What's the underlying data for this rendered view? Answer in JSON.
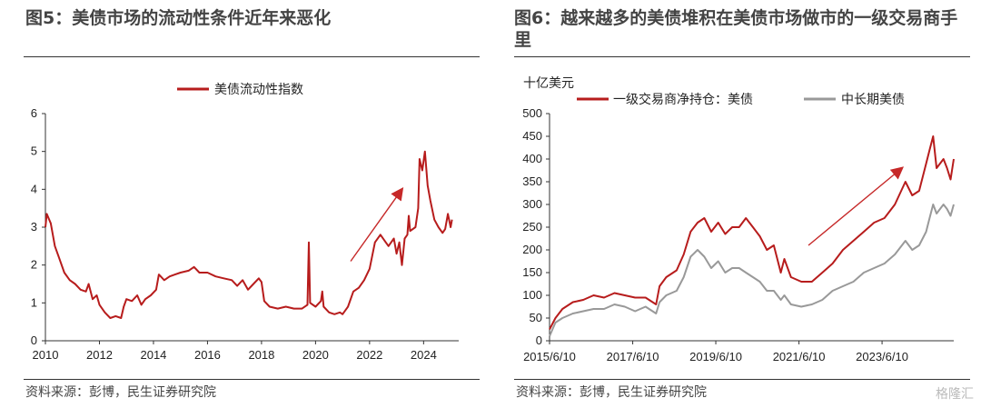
{
  "left": {
    "title": "图5：美债市场的流动性条件近年来恶化",
    "source": "资料来源：彭博，民生证券研究院",
    "chart_data": {
      "type": "line",
      "title": "",
      "xlabel": "",
      "ylabel": "",
      "xlim": [
        2010,
        2025.3
      ],
      "ylim": [
        0,
        6
      ],
      "x_ticks": [
        "2010",
        "2012",
        "2014",
        "2016",
        "2018",
        "2020",
        "2022",
        "2024"
      ],
      "y_ticks": [
        "0",
        "1",
        "2",
        "3",
        "4",
        "5",
        "6"
      ],
      "legend": "top-center",
      "series": [
        {
          "name": "美债流动性指数",
          "color": "#b71c1c",
          "points": [
            [
              2010.0,
              3.0
            ],
            [
              2010.05,
              3.35
            ],
            [
              2010.2,
              3.1
            ],
            [
              2010.35,
              2.5
            ],
            [
              2010.5,
              2.2
            ],
            [
              2010.7,
              1.8
            ],
            [
              2010.9,
              1.6
            ],
            [
              2011.1,
              1.5
            ],
            [
              2011.3,
              1.35
            ],
            [
              2011.5,
              1.3
            ],
            [
              2011.6,
              1.5
            ],
            [
              2011.75,
              1.1
            ],
            [
              2011.9,
              1.2
            ],
            [
              2012.0,
              0.95
            ],
            [
              2012.2,
              0.75
            ],
            [
              2012.4,
              0.6
            ],
            [
              2012.6,
              0.65
            ],
            [
              2012.8,
              0.6
            ],
            [
              2012.9,
              0.9
            ],
            [
              2013.0,
              1.1
            ],
            [
              2013.2,
              1.05
            ],
            [
              2013.4,
              1.2
            ],
            [
              2013.55,
              0.95
            ],
            [
              2013.7,
              1.1
            ],
            [
              2013.9,
              1.2
            ],
            [
              2014.1,
              1.35
            ],
            [
              2014.2,
              1.75
            ],
            [
              2014.4,
              1.6
            ],
            [
              2014.6,
              1.7
            ],
            [
              2014.8,
              1.75
            ],
            [
              2015.0,
              1.8
            ],
            [
              2015.3,
              1.85
            ],
            [
              2015.5,
              1.95
            ],
            [
              2015.7,
              1.8
            ],
            [
              2016.0,
              1.8
            ],
            [
              2016.3,
              1.7
            ],
            [
              2016.6,
              1.65
            ],
            [
              2016.9,
              1.6
            ],
            [
              2017.1,
              1.45
            ],
            [
              2017.3,
              1.6
            ],
            [
              2017.5,
              1.35
            ],
            [
              2017.7,
              1.5
            ],
            [
              2017.9,
              1.65
            ],
            [
              2018.0,
              1.55
            ],
            [
              2018.1,
              1.05
            ],
            [
              2018.3,
              0.9
            ],
            [
              2018.6,
              0.85
            ],
            [
              2018.9,
              0.9
            ],
            [
              2019.2,
              0.85
            ],
            [
              2019.5,
              0.85
            ],
            [
              2019.7,
              0.95
            ],
            [
              2019.75,
              2.6
            ],
            [
              2019.8,
              1.0
            ],
            [
              2020.0,
              0.9
            ],
            [
              2020.2,
              1.05
            ],
            [
              2020.25,
              1.3
            ],
            [
              2020.3,
              0.9
            ],
            [
              2020.5,
              0.75
            ],
            [
              2020.7,
              0.7
            ],
            [
              2020.9,
              0.75
            ],
            [
              2021.0,
              0.7
            ],
            [
              2021.2,
              0.9
            ],
            [
              2021.4,
              1.3
            ],
            [
              2021.6,
              1.4
            ],
            [
              2021.8,
              1.6
            ],
            [
              2022.0,
              1.9
            ],
            [
              2022.2,
              2.6
            ],
            [
              2022.4,
              2.8
            ],
            [
              2022.6,
              2.6
            ],
            [
              2022.7,
              2.5
            ],
            [
              2022.9,
              2.7
            ],
            [
              2023.0,
              2.3
            ],
            [
              2023.1,
              2.6
            ],
            [
              2023.2,
              2.0
            ],
            [
              2023.3,
              2.7
            ],
            [
              2023.4,
              2.8
            ],
            [
              2023.45,
              3.3
            ],
            [
              2023.5,
              2.9
            ],
            [
              2023.7,
              3.0
            ],
            [
              2023.8,
              3.5
            ],
            [
              2023.85,
              4.8
            ],
            [
              2023.95,
              4.5
            ],
            [
              2024.05,
              5.0
            ],
            [
              2024.15,
              4.1
            ],
            [
              2024.25,
              3.7
            ],
            [
              2024.4,
              3.2
            ],
            [
              2024.55,
              3.0
            ],
            [
              2024.7,
              2.85
            ],
            [
              2024.8,
              2.95
            ],
            [
              2024.9,
              3.35
            ],
            [
              2025.0,
              3.0
            ],
            [
              2025.05,
              3.2
            ]
          ]
        }
      ],
      "annotation": "red-arrow-upward-trend"
    }
  },
  "right": {
    "title": "图6：越来越多的美债堆积在美债市场做市的一级交易商手里",
    "source": "资料来源：彭博，民生证券研究院",
    "unit_label": "十亿美元",
    "chart_data": {
      "type": "line",
      "title": "",
      "xlabel": "",
      "ylabel": "十亿美元",
      "xlim": [
        "2015-06-10",
        "2025-03-01"
      ],
      "ylim": [
        0,
        500
      ],
      "x_ticks": [
        "2015/6/10",
        "2017/6/10",
        "2019/6/10",
        "2021/6/10",
        "2023/6/10"
      ],
      "y_ticks": [
        "0",
        "50",
        "100",
        "150",
        "200",
        "250",
        "300",
        "350",
        "400",
        "450",
        "500"
      ],
      "legend": "top",
      "series": [
        {
          "name": "一级交易商净持仓：美债",
          "color": "#b71c1c",
          "points": [
            [
              "2015-06-10",
              25
            ],
            [
              "2015-08-01",
              50
            ],
            [
              "2015-10-01",
              70
            ],
            [
              "2016-01-01",
              85
            ],
            [
              "2016-04-01",
              90
            ],
            [
              "2016-07-01",
              100
            ],
            [
              "2016-10-01",
              95
            ],
            [
              "2017-01-01",
              105
            ],
            [
              "2017-04-01",
              100
            ],
            [
              "2017-07-01",
              95
            ],
            [
              "2017-10-01",
              95
            ],
            [
              "2018-01-01",
              80
            ],
            [
              "2018-02-01",
              120
            ],
            [
              "2018-04-01",
              140
            ],
            [
              "2018-07-01",
              155
            ],
            [
              "2018-09-01",
              190
            ],
            [
              "2018-11-01",
              240
            ],
            [
              "2019-01-01",
              260
            ],
            [
              "2019-03-01",
              270
            ],
            [
              "2019-05-01",
              240
            ],
            [
              "2019-07-01",
              260
            ],
            [
              "2019-09-01",
              235
            ],
            [
              "2019-11-01",
              250
            ],
            [
              "2020-01-01",
              250
            ],
            [
              "2020-03-01",
              270
            ],
            [
              "2020-05-01",
              250
            ],
            [
              "2020-07-01",
              230
            ],
            [
              "2020-09-01",
              200
            ],
            [
              "2020-11-01",
              210
            ],
            [
              "2021-01-01",
              150
            ],
            [
              "2021-02-01",
              180
            ],
            [
              "2021-04-01",
              140
            ],
            [
              "2021-07-01",
              130
            ],
            [
              "2021-10-01",
              130
            ],
            [
              "2022-01-01",
              150
            ],
            [
              "2022-04-01",
              170
            ],
            [
              "2022-07-01",
              200
            ],
            [
              "2022-10-01",
              220
            ],
            [
              "2023-01-01",
              240
            ],
            [
              "2023-04-01",
              260
            ],
            [
              "2023-07-01",
              270
            ],
            [
              "2023-10-01",
              300
            ],
            [
              "2024-01-01",
              350
            ],
            [
              "2024-03-01",
              320
            ],
            [
              "2024-05-01",
              330
            ],
            [
              "2024-07-01",
              390
            ],
            [
              "2024-08-01",
              420
            ],
            [
              "2024-09-01",
              450
            ],
            [
              "2024-10-01",
              380
            ],
            [
              "2024-12-01",
              400
            ],
            [
              "2025-01-01",
              380
            ],
            [
              "2025-02-01",
              355
            ],
            [
              "2025-03-01",
              400
            ]
          ]
        },
        {
          "name": "中长期美债",
          "color": "#999999",
          "points": [
            [
              "2015-06-10",
              10
            ],
            [
              "2015-08-01",
              40
            ],
            [
              "2015-10-01",
              50
            ],
            [
              "2016-01-01",
              60
            ],
            [
              "2016-04-01",
              65
            ],
            [
              "2016-07-01",
              70
            ],
            [
              "2016-10-01",
              70
            ],
            [
              "2017-01-01",
              80
            ],
            [
              "2017-04-01",
              75
            ],
            [
              "2017-07-01",
              65
            ],
            [
              "2017-10-01",
              75
            ],
            [
              "2018-01-01",
              60
            ],
            [
              "2018-02-01",
              85
            ],
            [
              "2018-04-01",
              100
            ],
            [
              "2018-07-01",
              110
            ],
            [
              "2018-09-01",
              140
            ],
            [
              "2018-11-01",
              185
            ],
            [
              "2019-01-01",
              200
            ],
            [
              "2019-03-01",
              185
            ],
            [
              "2019-05-01",
              160
            ],
            [
              "2019-07-01",
              175
            ],
            [
              "2019-09-01",
              150
            ],
            [
              "2019-11-01",
              160
            ],
            [
              "2020-01-01",
              160
            ],
            [
              "2020-03-01",
              150
            ],
            [
              "2020-05-01",
              140
            ],
            [
              "2020-07-01",
              130
            ],
            [
              "2020-09-01",
              110
            ],
            [
              "2020-11-01",
              110
            ],
            [
              "2021-01-01",
              90
            ],
            [
              "2021-02-01",
              100
            ],
            [
              "2021-04-01",
              80
            ],
            [
              "2021-07-01",
              75
            ],
            [
              "2021-10-01",
              80
            ],
            [
              "2022-01-01",
              90
            ],
            [
              "2022-04-01",
              110
            ],
            [
              "2022-07-01",
              120
            ],
            [
              "2022-10-01",
              130
            ],
            [
              "2023-01-01",
              150
            ],
            [
              "2023-04-01",
              160
            ],
            [
              "2023-07-01",
              170
            ],
            [
              "2023-10-01",
              190
            ],
            [
              "2024-01-01",
              220
            ],
            [
              "2024-03-01",
              200
            ],
            [
              "2024-05-01",
              210
            ],
            [
              "2024-07-01",
              240
            ],
            [
              "2024-08-01",
              270
            ],
            [
              "2024-09-01",
              300
            ],
            [
              "2024-10-01",
              280
            ],
            [
              "2024-12-01",
              300
            ],
            [
              "2025-01-01",
              290
            ],
            [
              "2025-02-01",
              275
            ],
            [
              "2025-03-01",
              300
            ]
          ]
        }
      ],
      "annotation": "red-arrow-upward-trend"
    }
  },
  "watermark": "格隆汇"
}
